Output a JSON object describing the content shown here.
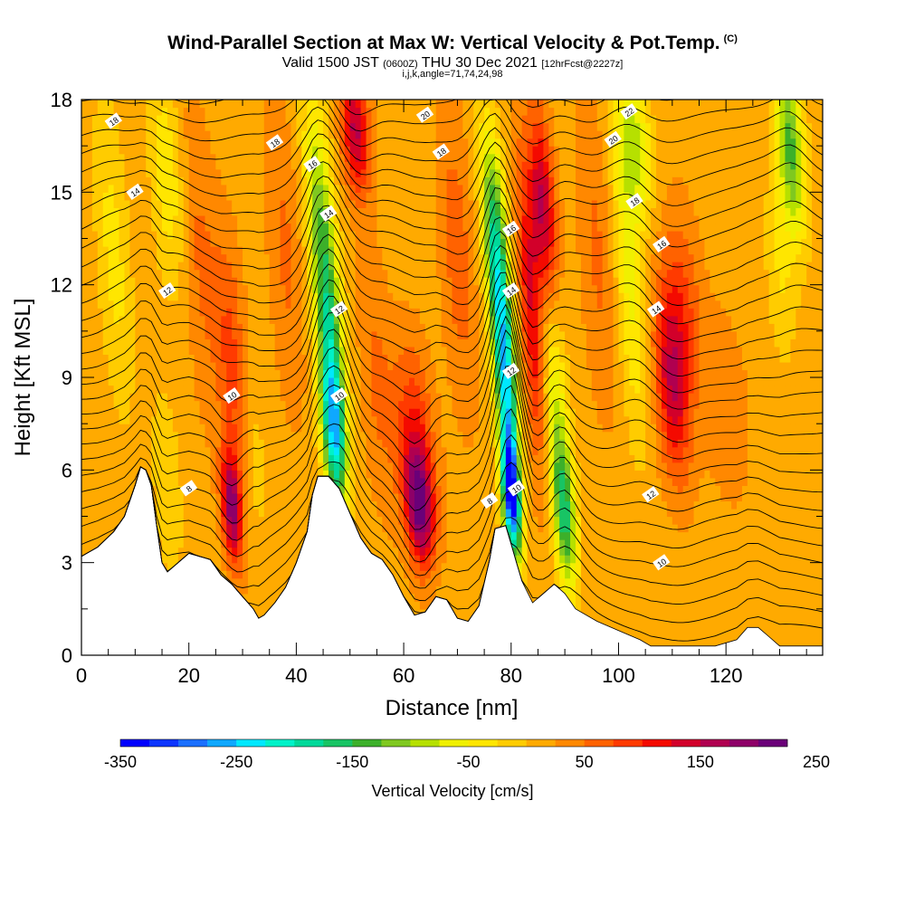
{
  "header": {
    "title": "Wind-Parallel Section at Max W: Vertical Velocity & Pot.Temp.",
    "title_tag": "(C)",
    "valid_prefix": "Valid 1500 JST",
    "valid_zulu": "(0600Z)",
    "valid_date": "THU 30 Dec 2021",
    "forecast": "[12hrFcst@2227z]",
    "indices": "i,j,k,angle=71,74,24,98"
  },
  "chart_data": {
    "type": "heatmap",
    "xlabel": "Distance [nm]",
    "ylabel": "Height [Kft MSL]",
    "xlim": [
      0,
      138
    ],
    "ylim": [
      0,
      18
    ],
    "x_ticks": [
      0,
      20,
      40,
      60,
      80,
      100,
      120
    ],
    "y_ticks": [
      0,
      3,
      6,
      9,
      12,
      15,
      18
    ],
    "colorbar": {
      "label": "Vertical Velocity [cm/s]",
      "min": -350,
      "step": 25,
      "tick_values": [
        -350,
        -250,
        -150,
        -50,
        50,
        150,
        250
      ],
      "colors": [
        "#0000ff",
        "#0d35ff",
        "#1a6fff",
        "#0fa8ff",
        "#00e8ff",
        "#00f2c8",
        "#00d99a",
        "#18c464",
        "#3cb02a",
        "#7fc820",
        "#b6e000",
        "#f0f000",
        "#ffe600",
        "#ffcc00",
        "#ffaa00",
        "#ff8800",
        "#ff6200",
        "#ff3a00",
        "#f40a00",
        "#d2002a",
        "#b00050",
        "#8e0068",
        "#6a0078"
      ]
    },
    "terrain_heights_kft": [
      [
        0,
        3.2
      ],
      [
        3,
        3.5
      ],
      [
        6,
        4.0
      ],
      [
        8,
        4.5
      ],
      [
        10,
        5.5
      ],
      [
        11,
        6.1
      ],
      [
        12,
        6.0
      ],
      [
        13,
        5.5
      ],
      [
        14,
        4.2
      ],
      [
        15,
        3.0
      ],
      [
        16,
        2.7
      ],
      [
        18,
        3.0
      ],
      [
        20,
        3.3
      ],
      [
        24,
        3.1
      ],
      [
        26,
        2.6
      ],
      [
        28,
        2.3
      ],
      [
        30,
        1.9
      ],
      [
        32,
        1.5
      ],
      [
        33,
        1.2
      ],
      [
        34,
        1.3
      ],
      [
        36,
        1.7
      ],
      [
        38,
        2.2
      ],
      [
        40,
        3.0
      ],
      [
        42,
        4.0
      ],
      [
        43,
        5.2
      ],
      [
        44,
        5.8
      ],
      [
        46,
        5.8
      ],
      [
        48,
        5.4
      ],
      [
        50,
        4.6
      ],
      [
        52,
        3.8
      ],
      [
        54,
        3.3
      ],
      [
        56,
        3.1
      ],
      [
        58,
        2.6
      ],
      [
        60,
        1.9
      ],
      [
        62,
        1.3
      ],
      [
        64,
        1.4
      ],
      [
        66,
        1.9
      ],
      [
        68,
        1.8
      ],
      [
        70,
        1.2
      ],
      [
        72,
        1.1
      ],
      [
        74,
        1.6
      ],
      [
        76,
        3.1
      ],
      [
        77,
        4.1
      ],
      [
        79,
        4.2
      ],
      [
        80,
        3.6
      ],
      [
        82,
        2.4
      ],
      [
        84,
        1.7
      ],
      [
        86,
        2.0
      ],
      [
        88,
        2.3
      ],
      [
        90,
        2.0
      ],
      [
        92,
        1.5
      ],
      [
        96,
        1.1
      ],
      [
        100,
        0.8
      ],
      [
        104,
        0.5
      ],
      [
        106,
        0.3
      ],
      [
        112,
        0.3
      ],
      [
        118,
        0.3
      ],
      [
        122,
        0.5
      ],
      [
        124,
        0.9
      ],
      [
        126,
        0.9
      ],
      [
        128,
        0.6
      ],
      [
        130,
        0.3
      ],
      [
        138,
        0.3
      ]
    ],
    "cells": [
      {
        "x": 16,
        "z": 5.5,
        "sx": 2.5,
        "sz": 3.0,
        "w": -40
      },
      {
        "x": 16,
        "z": 15.5,
        "sx": 3.0,
        "sz": 3.5,
        "w": -60
      },
      {
        "x": 28,
        "z": 4.8,
        "sx": 1.8,
        "sz": 1.8,
        "w": 170
      },
      {
        "x": 28,
        "z": 9.5,
        "sx": 2.8,
        "sz": 4.0,
        "w": 70
      },
      {
        "x": 32,
        "z": 6.5,
        "sx": 2.5,
        "sz": 3.0,
        "w": -30
      },
      {
        "x": 47,
        "z": 7.3,
        "sx": 2.2,
        "sz": 2.5,
        "w": -240
      },
      {
        "x": 46,
        "z": 11.0,
        "sx": 2.5,
        "sz": 3.5,
        "w": -150
      },
      {
        "x": 44,
        "z": 15.0,
        "sx": 2.5,
        "sz": 3.5,
        "w": -90
      },
      {
        "x": 51,
        "z": 17.0,
        "sx": 2.5,
        "sz": 2.0,
        "w": 140
      },
      {
        "x": 55,
        "z": 9.0,
        "sx": 3.0,
        "sz": 4.0,
        "w": 40
      },
      {
        "x": 63,
        "z": 4.8,
        "sx": 2.5,
        "sz": 1.8,
        "w": 170
      },
      {
        "x": 62,
        "z": 7.0,
        "sx": 3.5,
        "sz": 3.0,
        "w": 90
      },
      {
        "x": 80,
        "z": 5.2,
        "sx": 1.6,
        "sz": 2.0,
        "w": -330
      },
      {
        "x": 79,
        "z": 9.0,
        "sx": 2.0,
        "sz": 3.5,
        "w": -230
      },
      {
        "x": 77,
        "z": 13.5,
        "sx": 2.2,
        "sz": 3.5,
        "w": -170
      },
      {
        "x": 84,
        "z": 11.0,
        "sx": 2.2,
        "sz": 5.0,
        "w": 120
      },
      {
        "x": 86,
        "z": 14.5,
        "sx": 2.2,
        "sz": 3.0,
        "w": 140
      },
      {
        "x": 90,
        "z": 4.5,
        "sx": 2.0,
        "sz": 2.5,
        "w": -150
      },
      {
        "x": 88,
        "z": 8.0,
        "sx": 2.5,
        "sz": 4.0,
        "w": -90
      },
      {
        "x": 102,
        "z": 12.0,
        "sx": 2.5,
        "sz": 5.0,
        "w": -70
      },
      {
        "x": 103,
        "z": 16.5,
        "sx": 3.0,
        "sz": 2.5,
        "w": -100
      },
      {
        "x": 110,
        "z": 8.8,
        "sx": 3.0,
        "sz": 3.0,
        "w": 130
      },
      {
        "x": 112,
        "z": 11.5,
        "sx": 3.5,
        "sz": 3.0,
        "w": 60
      },
      {
        "x": 132,
        "z": 16.5,
        "sx": 2.5,
        "sz": 3.0,
        "w": -150
      },
      {
        "x": 130,
        "z": 12.5,
        "sx": 2.5,
        "sz": 3.0,
        "w": -40
      },
      {
        "x": 6,
        "z": 13.0,
        "sx": 3.0,
        "sz": 5.0,
        "w": -50
      },
      {
        "x": 22,
        "z": 13.0,
        "sx": 3.0,
        "sz": 5.0,
        "w": 40
      },
      {
        "x": 38,
        "z": 13.0,
        "sx": 3.0,
        "sz": 5.0,
        "w": 40
      },
      {
        "x": 70,
        "z": 13.0,
        "sx": 3.0,
        "sz": 5.0,
        "w": 50
      },
      {
        "x": 96,
        "z": 13.0,
        "sx": 3.0,
        "sz": 5.0,
        "w": 40
      },
      {
        "x": 120,
        "z": 8.0,
        "sx": 4.0,
        "sz": 3.0,
        "w": 30
      }
    ],
    "contour_labels": [
      {
        "x": 6,
        "z": 17.3,
        "text": "18"
      },
      {
        "x": 36,
        "z": 16.6,
        "text": "18"
      },
      {
        "x": 64,
        "z": 17.5,
        "text": "20"
      },
      {
        "x": 102,
        "z": 17.6,
        "text": "22"
      },
      {
        "x": 10,
        "z": 15.0,
        "text": "14"
      },
      {
        "x": 43,
        "z": 15.9,
        "text": "16"
      },
      {
        "x": 67,
        "z": 16.3,
        "text": "18"
      },
      {
        "x": 99,
        "z": 16.7,
        "text": "20"
      },
      {
        "x": 46,
        "z": 14.3,
        "text": "14"
      },
      {
        "x": 103,
        "z": 14.7,
        "text": "18"
      },
      {
        "x": 80,
        "z": 13.8,
        "text": "16"
      },
      {
        "x": 108,
        "z": 13.3,
        "text": "16"
      },
      {
        "x": 16,
        "z": 11.8,
        "text": "12"
      },
      {
        "x": 80,
        "z": 11.8,
        "text": "14"
      },
      {
        "x": 48,
        "z": 11.2,
        "text": "12"
      },
      {
        "x": 107,
        "z": 11.2,
        "text": "14"
      },
      {
        "x": 80,
        "z": 9.2,
        "text": "12"
      },
      {
        "x": 28,
        "z": 8.4,
        "text": "10"
      },
      {
        "x": 48,
        "z": 8.4,
        "text": "10"
      },
      {
        "x": 81,
        "z": 5.4,
        "text": "10"
      },
      {
        "x": 20,
        "z": 5.4,
        "text": "8"
      },
      {
        "x": 76,
        "z": 5.0,
        "text": "8"
      },
      {
        "x": 106,
        "z": 5.2,
        "text": "12"
      },
      {
        "x": 108,
        "z": 3.0,
        "text": "10"
      }
    ]
  }
}
